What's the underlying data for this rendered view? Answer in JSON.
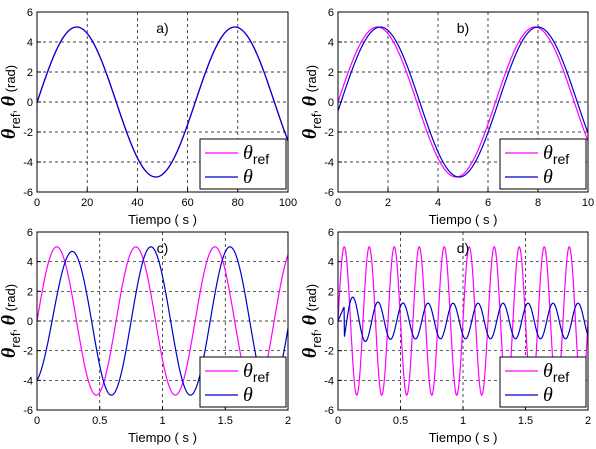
{
  "chart_data": [
    {
      "type": "line",
      "annotation": "a)",
      "xlabel": "Tiempo",
      "xlabel_unit": "( s )",
      "ylabel": {
        "symbol1": "θ",
        "sub1": "ref",
        "sep": ", ",
        "symbol2": "θ",
        "unit": "(rad)"
      },
      "xlim": [
        0,
        100
      ],
      "ylim": [
        -6,
        6
      ],
      "xticks": [
        "0",
        "20",
        "40",
        "60",
        "80",
        "100"
      ],
      "yticks": [
        "-6",
        "-4",
        "-2",
        "0",
        "2",
        "4",
        "6"
      ],
      "grid": true,
      "legend_position": "bottom-right",
      "series": [
        {
          "name": "θ",
          "name_sub": "ref",
          "color": "#ff00ff",
          "amplitude": 5,
          "period": 63,
          "phase_lag": 0,
          "x_start": 0,
          "x_end": 100
        },
        {
          "name": "θ",
          "color": "#0000cc",
          "amplitude": 5,
          "period": 63,
          "phase_lag": 0.1,
          "x_start": 0,
          "x_end": 100
        }
      ]
    },
    {
      "type": "line",
      "annotation": "b)",
      "xlabel": "Tiempo",
      "xlabel_unit": "( s )",
      "ylabel": {
        "symbol1": "θ",
        "sub1": "ref",
        "sep": ", ",
        "symbol2": "θ",
        "unit": "(rad)"
      },
      "xlim": [
        0,
        10
      ],
      "ylim": [
        -6,
        6
      ],
      "xticks": [
        "0",
        "2",
        "4",
        "6",
        "8",
        "10"
      ],
      "yticks": [
        "-6",
        "-4",
        "-2",
        "0",
        "2",
        "4",
        "6"
      ],
      "grid": true,
      "legend_position": "bottom-right",
      "series": [
        {
          "name": "θ",
          "name_sub": "ref",
          "color": "#ff00ff",
          "amplitude": 5,
          "period": 6.3,
          "phase_lag": 0,
          "x_start": 0,
          "x_end": 10
        },
        {
          "name": "θ",
          "color": "#0000cc",
          "amplitude": 5,
          "period": 6.3,
          "phase_lag": 0.12,
          "x_start": 0,
          "x_end": 10
        }
      ]
    },
    {
      "type": "line",
      "annotation": "c)",
      "xlabel": "Tiempo",
      "xlabel_unit": "( s )",
      "ylabel": {
        "symbol1": "θ",
        "sub1": "ref",
        "sep": ", ",
        "symbol2": "θ",
        "unit": "(rad)"
      },
      "xlim": [
        0,
        2
      ],
      "ylim": [
        -6,
        6
      ],
      "xticks": [
        "0",
        "0.5",
        "1",
        "1.5",
        "2"
      ],
      "yticks": [
        "-6",
        "-4",
        "-2",
        "0",
        "2",
        "4",
        "6"
      ],
      "grid": true,
      "legend_position": "bottom-right",
      "series": [
        {
          "name": "θ",
          "name_sub": "ref",
          "color": "#ff00ff",
          "amplitude": 5,
          "period": 0.63,
          "phase_lag": 0,
          "x_start": 0,
          "x_end": 2
        },
        {
          "name": "θ",
          "color": "#0000cc",
          "amplitude": 5,
          "period": 0.63,
          "phase_lag": 0.12,
          "x_start": 0,
          "x_end": 2,
          "ramp_until": 0.5,
          "start_amplitude": 4.3
        }
      ]
    },
    {
      "type": "line",
      "annotation": "d)",
      "xlabel": "Tiempo",
      "xlabel_unit": "( s )",
      "ylabel": {
        "symbol1": "θ",
        "sub1": "ref",
        "sep": ", ",
        "symbol2": "θ",
        "unit": "(rad)"
      },
      "xlim": [
        0,
        2
      ],
      "ylim": [
        -6,
        6
      ],
      "xticks": [
        "0",
        "0.5",
        "1",
        "1.5",
        "2"
      ],
      "yticks": [
        "-6",
        "-4",
        "-2",
        "0",
        "2",
        "4",
        "6"
      ],
      "grid": true,
      "legend_position": "bottom-right",
      "series": [
        {
          "name": "θ",
          "name_sub": "ref",
          "color": "#ff00ff",
          "amplitude": 5,
          "period": 0.2,
          "phase_lag": 0,
          "x_start": 0,
          "x_end": 2
        },
        {
          "name": "θ",
          "color": "#0000cc",
          "amplitude": 1.2,
          "period": 0.2,
          "phase_lag": 0.07,
          "x_start": 0,
          "x_end": 2,
          "transient_peak": 2.3
        }
      ]
    }
  ]
}
